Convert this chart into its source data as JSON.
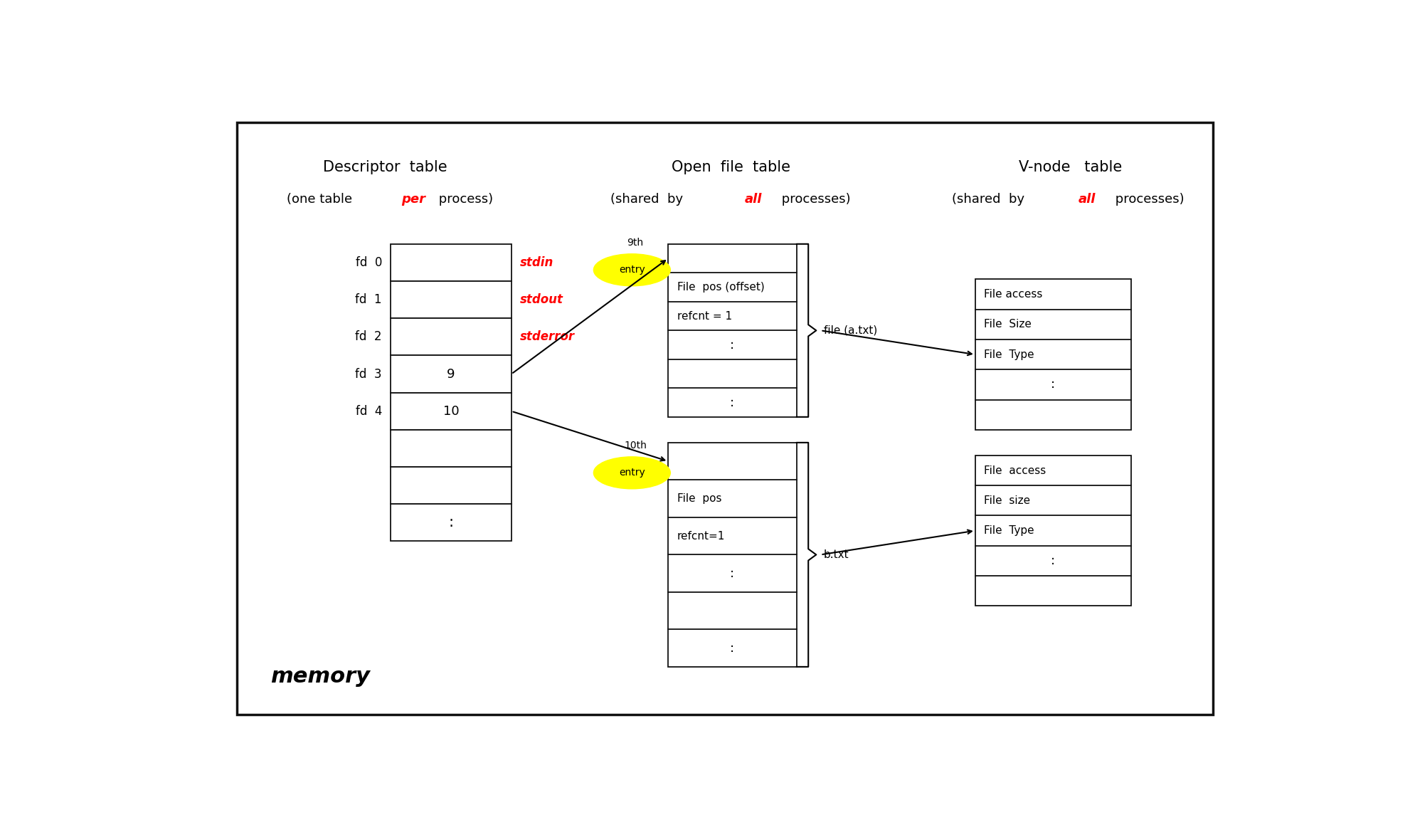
{
  "bg_color": "#ffffff",
  "border_color": "#111111",
  "memory_label": "memory",
  "desc_title": "Descriptor  table",
  "desc_sub_pre": "(one table ",
  "desc_sub_red": "per",
  "desc_sub_post": " process)",
  "open_title": "Open  file  table",
  "open_sub_pre": "(shared  by ",
  "open_sub_red": "all",
  "open_sub_post": " processes)",
  "vnode_title": "V-node   table",
  "vnode_sub_pre": "(shared  by ",
  "vnode_sub_red": "all",
  "vnode_sub_post": " processes)",
  "fd_red": {
    "0": "stdin",
    "1": "stdout",
    "2": "stderror"
  },
  "oft_top_labels": [
    "",
    "File  pos (offset)",
    "refcnt = 1",
    ":",
    "",
    ":"
  ],
  "oft_bot_labels": [
    "",
    "File  pos",
    "refcnt=1",
    ":",
    "",
    ":"
  ],
  "vn_top_labels": [
    "File access",
    "File  Size",
    "File  Type",
    ":",
    ""
  ],
  "vn_bot_labels": [
    "File  access",
    "File  size",
    "File  Type",
    ":",
    ""
  ]
}
